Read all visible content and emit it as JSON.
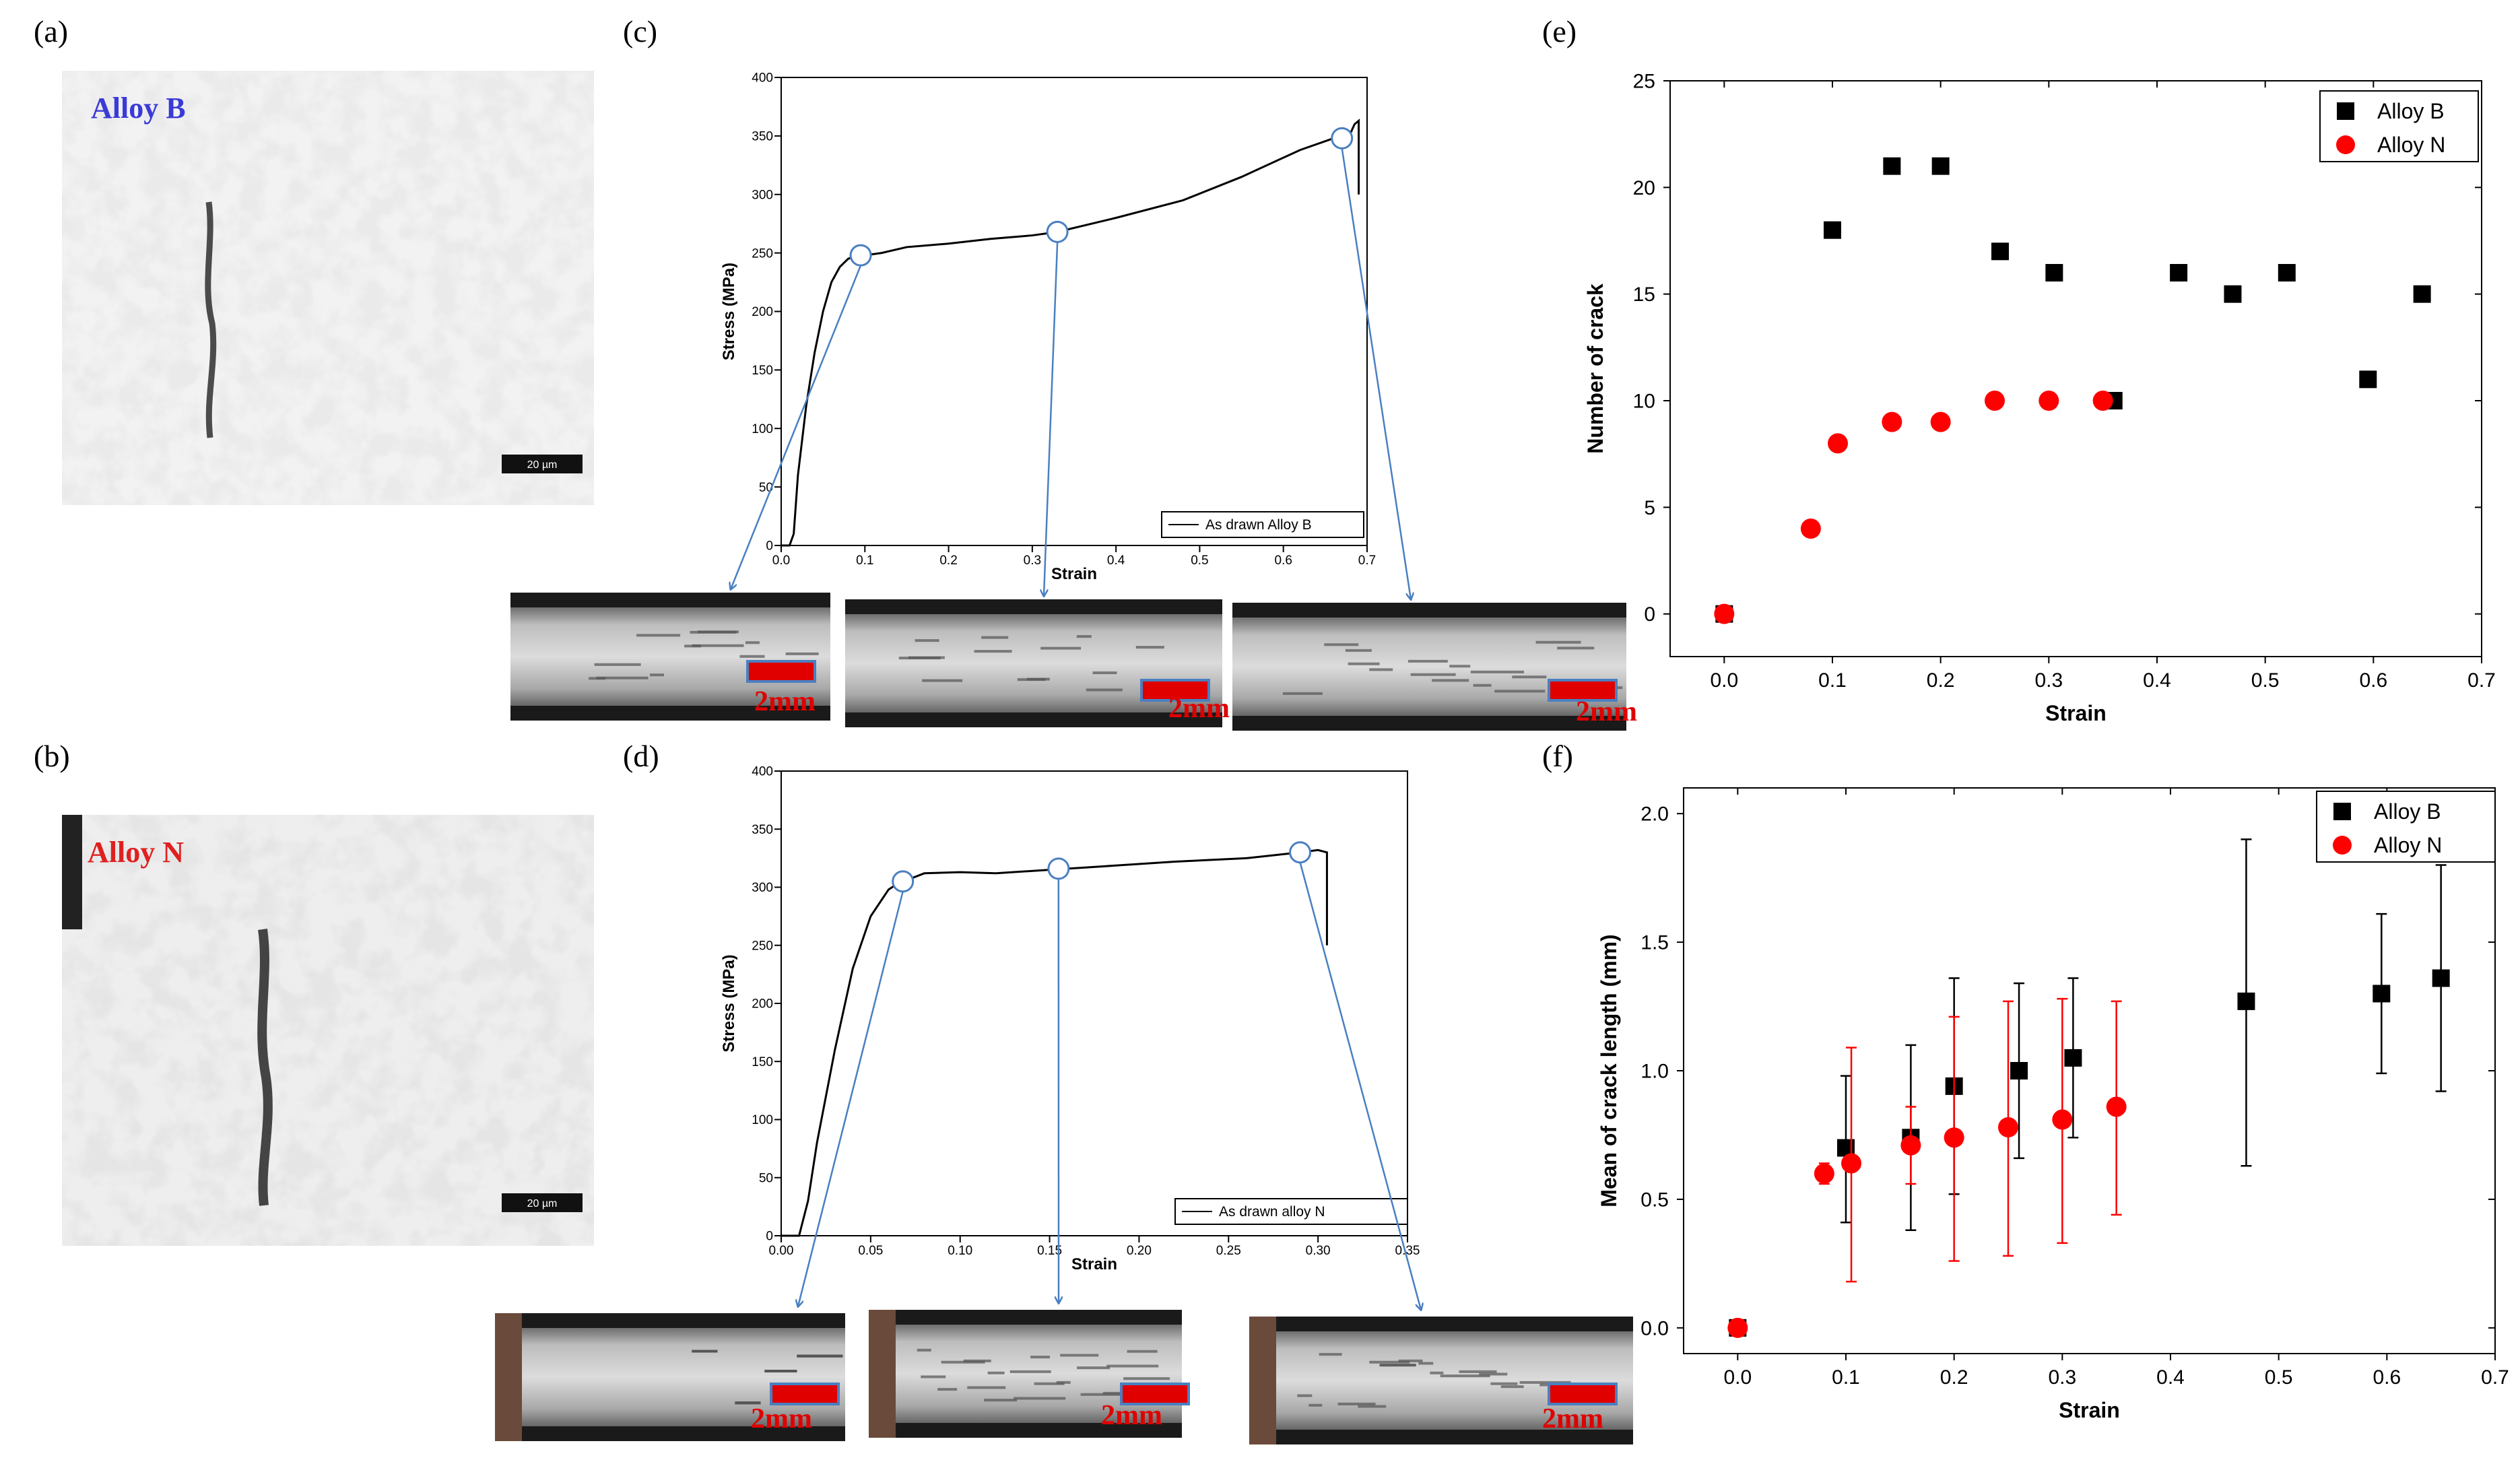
{
  "panel_labels": [
    "(a)",
    "(b)",
    "(c)",
    "(d)",
    "(e)",
    "(f)"
  ],
  "micrographs": [
    {
      "label": "Alloy B",
      "label_color": "#3a3ad8",
      "scale_bar": "20 µm"
    },
    {
      "label": "Alloy N",
      "label_color": "#e02020",
      "scale_bar": "20 µm"
    }
  ],
  "specimen_scale_label": "2mm",
  "colors": {
    "alloy_b": "#000000",
    "alloy_n": "#ff0000",
    "arrow": "#4a7fc1",
    "curve": "#000000",
    "scale_bar": "#e00000"
  },
  "chart_data": [
    {
      "panel": "(c)",
      "type": "line",
      "title": "",
      "xlabel": "Strain",
      "ylabel": "Stress (MPa)",
      "xlim": [
        0,
        0.7
      ],
      "ylim": [
        0,
        400
      ],
      "xticks": [
        0.0,
        0.1,
        0.2,
        0.3,
        0.4,
        0.5,
        0.6,
        0.7
      ],
      "yticks": [
        0,
        50,
        100,
        150,
        200,
        250,
        300,
        350,
        400
      ],
      "legend": "As drawn Alloy B",
      "series": [
        {
          "name": "As drawn Alloy B",
          "x": [
            0,
            0.01,
            0.015,
            0.02,
            0.03,
            0.04,
            0.05,
            0.06,
            0.07,
            0.08,
            0.09,
            0.1,
            0.12,
            0.15,
            0.2,
            0.25,
            0.3,
            0.33,
            0.4,
            0.48,
            0.55,
            0.62,
            0.66,
            0.68,
            0.685,
            0.69,
            0.69,
            0.69
          ],
          "y": [
            0,
            0,
            10,
            60,
            120,
            165,
            200,
            225,
            238,
            245,
            248,
            248,
            250,
            255,
            258,
            262,
            265,
            268,
            280,
            295,
            315,
            338,
            348,
            352,
            360,
            363,
            330,
            300
          ]
        }
      ],
      "markers": [
        {
          "x": 0.095,
          "y": 248
        },
        {
          "x": 0.33,
          "y": 268
        },
        {
          "x": 0.67,
          "y": 348
        }
      ]
    },
    {
      "panel": "(d)",
      "type": "line",
      "title": "",
      "xlabel": "Strain",
      "ylabel": "Stress (MPa)",
      "xlim": [
        0,
        0.35
      ],
      "ylim": [
        0,
        400
      ],
      "xticks": [
        0.0,
        0.05,
        0.1,
        0.15,
        0.2,
        0.25,
        0.3,
        0.35
      ],
      "xtick_labels": [
        "0.00",
        "0.05",
        "0.10",
        "0.15",
        "0.20",
        "0.25",
        "0.30",
        "0.35"
      ],
      "yticks": [
        0,
        50,
        100,
        150,
        200,
        250,
        300,
        350,
        400
      ],
      "legend": "As drawn alloy N",
      "series": [
        {
          "name": "As drawn alloy N",
          "x": [
            0,
            0.01,
            0.015,
            0.02,
            0.03,
            0.04,
            0.05,
            0.06,
            0.065,
            0.07,
            0.08,
            0.1,
            0.12,
            0.15,
            0.18,
            0.22,
            0.26,
            0.29,
            0.3,
            0.305,
            0.305
          ],
          "y": [
            0,
            0,
            30,
            80,
            160,
            230,
            275,
            298,
            303,
            306,
            312,
            313,
            312,
            315,
            318,
            322,
            325,
            330,
            332,
            330,
            250
          ]
        }
      ],
      "markers": [
        {
          "x": 0.068,
          "y": 305
        },
        {
          "x": 0.155,
          "y": 316
        },
        {
          "x": 0.29,
          "y": 330
        }
      ]
    },
    {
      "panel": "(e)",
      "type": "scatter",
      "title": "",
      "xlabel": "Strain",
      "ylabel": "Number of crack",
      "xlim": [
        -0.05,
        0.7
      ],
      "ylim": [
        -2,
        25
      ],
      "xticks": [
        0.0,
        0.1,
        0.2,
        0.3,
        0.4,
        0.5,
        0.6,
        0.7
      ],
      "yticks": [
        0,
        5,
        10,
        15,
        20,
        25
      ],
      "legend_position": "top-right",
      "series": [
        {
          "name": "Alloy B",
          "marker": "square",
          "x": [
            0,
            0.1,
            0.155,
            0.2,
            0.255,
            0.305,
            0.36,
            0.42,
            0.47,
            0.52,
            0.595,
            0.645
          ],
          "y": [
            0,
            18,
            21,
            21,
            17,
            16,
            10,
            16,
            15,
            16,
            11,
            15
          ]
        },
        {
          "name": "Alloy N",
          "marker": "circle",
          "x": [
            0,
            0.08,
            0.105,
            0.155,
            0.2,
            0.25,
            0.3,
            0.35
          ],
          "y": [
            0,
            4,
            8,
            9,
            9,
            10,
            10,
            10
          ]
        }
      ]
    },
    {
      "panel": "(f)",
      "type": "scatter",
      "title": "",
      "xlabel": "Strain",
      "ylabel": "Mean of crack length (mm)",
      "xlim": [
        -0.05,
        0.7
      ],
      "ylim": [
        -0.1,
        2.1
      ],
      "xticks": [
        0.0,
        0.1,
        0.2,
        0.3,
        0.4,
        0.5,
        0.6,
        0.7
      ],
      "yticks": [
        0.0,
        0.5,
        1.0,
        1.5,
        2.0
      ],
      "legend_position": "top-right",
      "series": [
        {
          "name": "Alloy B",
          "marker": "square",
          "x": [
            0,
            0.1,
            0.16,
            0.2,
            0.26,
            0.31,
            0.47,
            0.595,
            0.65
          ],
          "y": [
            0,
            0.7,
            0.74,
            0.94,
            1.0,
            1.05,
            1.27,
            1.3,
            1.36
          ],
          "err_low": [
            0,
            0.41,
            0.38,
            0.52,
            0.66,
            0.74,
            0.63,
            0.99,
            0.92
          ],
          "err_high": [
            0,
            0.98,
            1.1,
            1.36,
            1.34,
            1.36,
            1.9,
            1.61,
            1.8
          ]
        },
        {
          "name": "Alloy N",
          "marker": "circle",
          "x": [
            0,
            0.08,
            0.105,
            0.16,
            0.2,
            0.25,
            0.3,
            0.35
          ],
          "y": [
            0,
            0.6,
            0.64,
            0.71,
            0.74,
            0.78,
            0.81,
            0.86
          ],
          "err_low": [
            0,
            0.56,
            0.18,
            0.56,
            0.26,
            0.28,
            0.33,
            0.44
          ],
          "err_high": [
            0,
            0.64,
            1.09,
            0.86,
            1.21,
            1.27,
            1.28,
            1.27
          ]
        }
      ]
    }
  ]
}
